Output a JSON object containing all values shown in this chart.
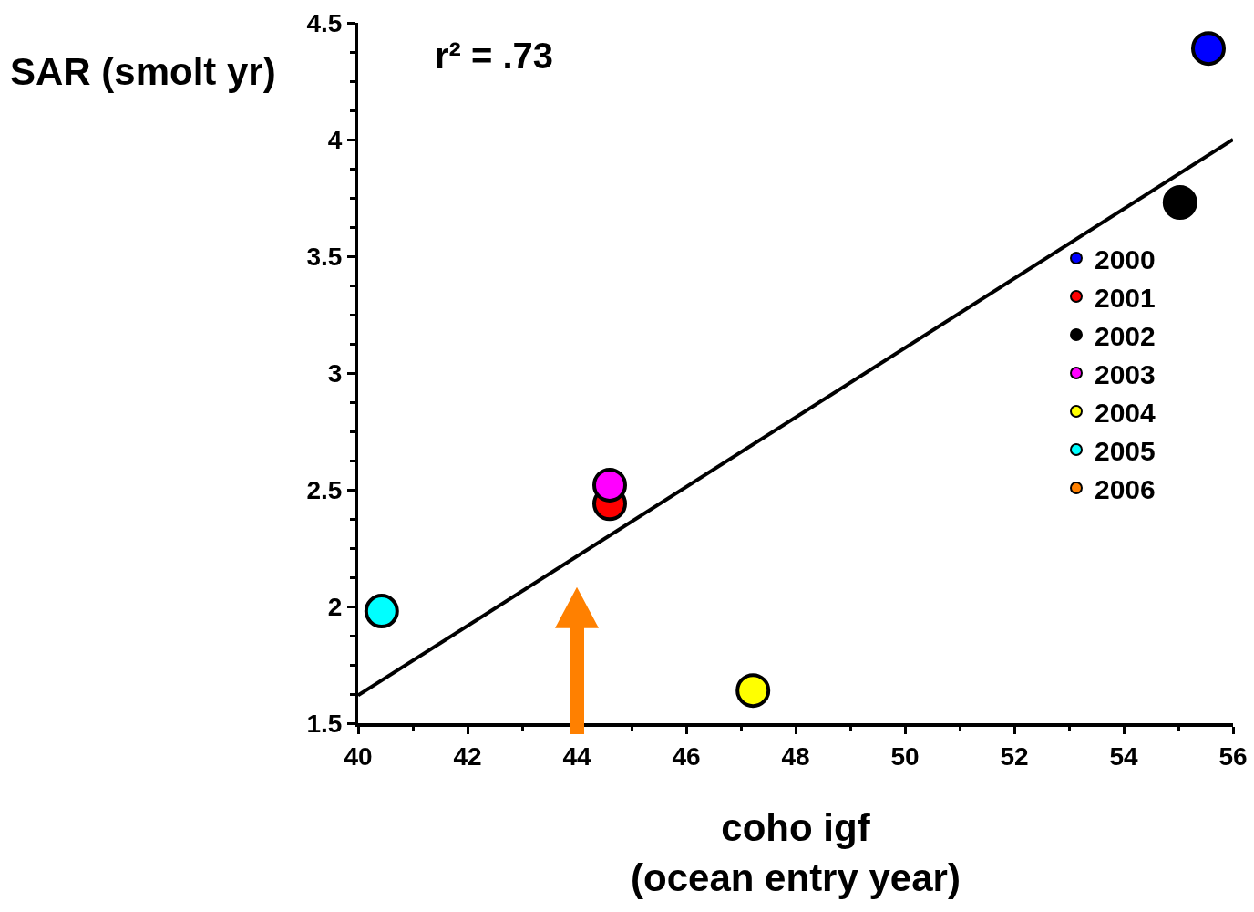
{
  "chart_data": {
    "type": "scatter",
    "xlabel": "coho igf\n(ocean entry year)",
    "ylabel": "SAR (smolt yr)",
    "annotations": [
      "r² = .73"
    ],
    "xlim": [
      40,
      56
    ],
    "xticks": [
      40,
      42,
      44,
      46,
      48,
      50,
      52,
      54,
      56
    ],
    "ylim": [
      1.5,
      4.5
    ],
    "yticks": [
      1.5,
      2,
      2.5,
      3,
      3.5,
      4,
      4.5
    ],
    "grid": false,
    "legend": "right",
    "marker": "circle",
    "series": [
      {
        "name": "2000",
        "color": "#0000ff",
        "x": [
          55.55
        ],
        "values": [
          4.39
        ]
      },
      {
        "name": "2001",
        "color": "#ff0000",
        "x": [
          44.6
        ],
        "values": [
          2.44
        ]
      },
      {
        "name": "2002",
        "color": "#000000",
        "x": [
          55.03
        ],
        "values": [
          3.73
        ]
      },
      {
        "name": "2003",
        "color": "#ff00ff",
        "x": [
          44.6
        ],
        "values": [
          2.52
        ]
      },
      {
        "name": "2004",
        "color": "#ffff00",
        "x": [
          47.22
        ],
        "values": [
          1.64
        ]
      },
      {
        "name": "2005",
        "color": "#00ffff",
        "x": [
          40.43
        ],
        "values": [
          1.98
        ]
      },
      {
        "name": "2006",
        "color": "#ff8000",
        "values": [
          null
        ]
      },
      {
        "type": "line",
        "color": "#000000",
        "marker": "none",
        "x": [
          40,
          56
        ],
        "values": [
          1.62,
          4.0
        ]
      }
    ]
  }
}
